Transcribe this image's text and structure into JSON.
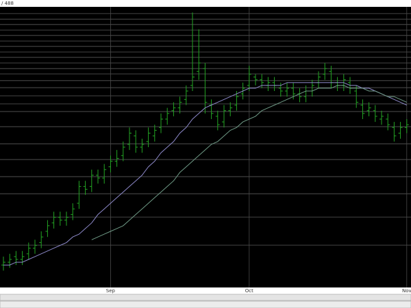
{
  "chart_data": {
    "type": "ohlc",
    "title": "/ 488",
    "categories": [
      null,
      null,
      null,
      null,
      null,
      null,
      null,
      null,
      null,
      null,
      null,
      null,
      null,
      null,
      null,
      null,
      null,
      "Sep",
      null,
      null,
      null,
      null,
      null,
      null,
      null,
      null,
      null,
      null,
      null,
      null,
      null,
      null,
      null,
      null,
      null,
      null,
      null,
      null,
      null,
      "Oct",
      null,
      null,
      null,
      null,
      null,
      null,
      null,
      null,
      null,
      null,
      null,
      null,
      null,
      null,
      null,
      null,
      null,
      null,
      null,
      null,
      null,
      null,
      null,
      null,
      "Nov"
    ],
    "open": [
      8,
      9,
      11,
      10,
      12,
      14,
      16,
      20,
      23,
      25,
      24,
      26,
      30,
      36,
      36,
      40,
      39,
      43,
      45,
      47,
      51,
      54,
      50,
      52,
      54,
      57,
      60,
      63,
      64,
      67,
      72,
      77,
      78,
      65,
      61,
      59,
      63,
      65,
      69,
      72,
      75,
      74,
      72,
      73,
      71,
      70,
      71,
      69,
      68,
      70,
      73,
      76,
      77,
      73,
      72,
      73,
      70,
      65,
      63,
      63,
      60,
      60,
      57,
      55,
      57
    ],
    "high": [
      11,
      12,
      13,
      13,
      16,
      17,
      20,
      24,
      27,
      27,
      27,
      30,
      38,
      38,
      42,
      42,
      44,
      47,
      49,
      52,
      57,
      56,
      53,
      57,
      58,
      62,
      64,
      66,
      68,
      72,
      98,
      92,
      80,
      67,
      63,
      65,
      66,
      70,
      73,
      79,
      76,
      76,
      75,
      75,
      73,
      73,
      73,
      71,
      72,
      74,
      77,
      80,
      79,
      75,
      76,
      75,
      72,
      67,
      66,
      65,
      63,
      62,
      59,
      59,
      60
    ],
    "low": [
      6,
      7,
      8,
      8,
      10,
      12,
      14,
      18,
      21,
      22,
      22,
      24,
      28,
      33,
      34,
      37,
      37,
      41,
      43,
      45,
      49,
      48,
      48,
      50,
      52,
      55,
      58,
      61,
      62,
      65,
      70,
      74,
      62,
      60,
      56,
      57,
      61,
      63,
      67,
      70,
      72,
      71,
      70,
      70,
      68,
      68,
      67,
      66,
      66,
      68,
      71,
      74,
      71,
      70,
      70,
      69,
      64,
      60,
      61,
      59,
      58,
      56,
      52,
      53,
      55
    ],
    "close": [
      9,
      10,
      10,
      11,
      14,
      15,
      18,
      22,
      25,
      24,
      25,
      28,
      36,
      35,
      40,
      39,
      42,
      45,
      46,
      50,
      55,
      50,
      51,
      55,
      56,
      60,
      62,
      64,
      66,
      70,
      75,
      80,
      66,
      62,
      58,
      63,
      64,
      68,
      71,
      76,
      74,
      73,
      73,
      72,
      70,
      71,
      69,
      68,
      70,
      72,
      75,
      78,
      73,
      72,
      74,
      71,
      66,
      62,
      64,
      61,
      61,
      58,
      54,
      57,
      58
    ],
    "color": "#23a523",
    "lines": [
      {
        "color": "#8d89c9",
        "values": [
          8,
          8,
          9,
          9,
          10,
          11,
          12,
          13,
          14,
          15,
          16,
          18,
          19,
          21,
          23,
          26,
          28,
          30,
          32,
          34,
          36,
          38,
          40,
          43,
          45,
          48,
          50,
          52,
          55,
          57,
          60,
          62,
          64,
          65,
          66,
          67,
          68,
          69,
          70,
          71,
          71,
          72,
          72,
          72,
          72,
          73,
          73,
          73,
          73,
          73,
          73,
          73,
          73,
          73,
          73,
          72,
          72,
          71,
          71,
          70,
          69,
          68,
          67,
          66,
          65
        ]
      },
      {
        "color": "#6f9a86",
        "values": [
          null,
          null,
          null,
          null,
          null,
          null,
          null,
          null,
          null,
          null,
          null,
          null,
          null,
          null,
          17,
          18,
          19,
          20,
          21,
          22,
          24,
          26,
          28,
          30,
          32,
          34,
          36,
          38,
          41,
          43,
          45,
          47,
          49,
          51,
          52,
          54,
          56,
          57,
          59,
          60,
          61,
          63,
          64,
          65,
          66,
          67,
          68,
          69,
          70,
          70,
          71,
          71,
          71,
          72,
          72,
          71,
          71,
          71,
          70,
          70,
          69,
          68,
          68,
          67,
          66
        ]
      }
    ],
    "ylim": [
      0,
      100
    ],
    "yticks": [
      15.1,
      25.1,
      33.4,
      39.5,
      45.6,
      51.2,
      57.3,
      62.7,
      65.4,
      68.3,
      71.2,
      73.7,
      76.1,
      78,
      80,
      82,
      83.9,
      85.9,
      87.8,
      89.8,
      91.7,
      93.7,
      95.6,
      97.6
    ],
    "grid": true
  }
}
